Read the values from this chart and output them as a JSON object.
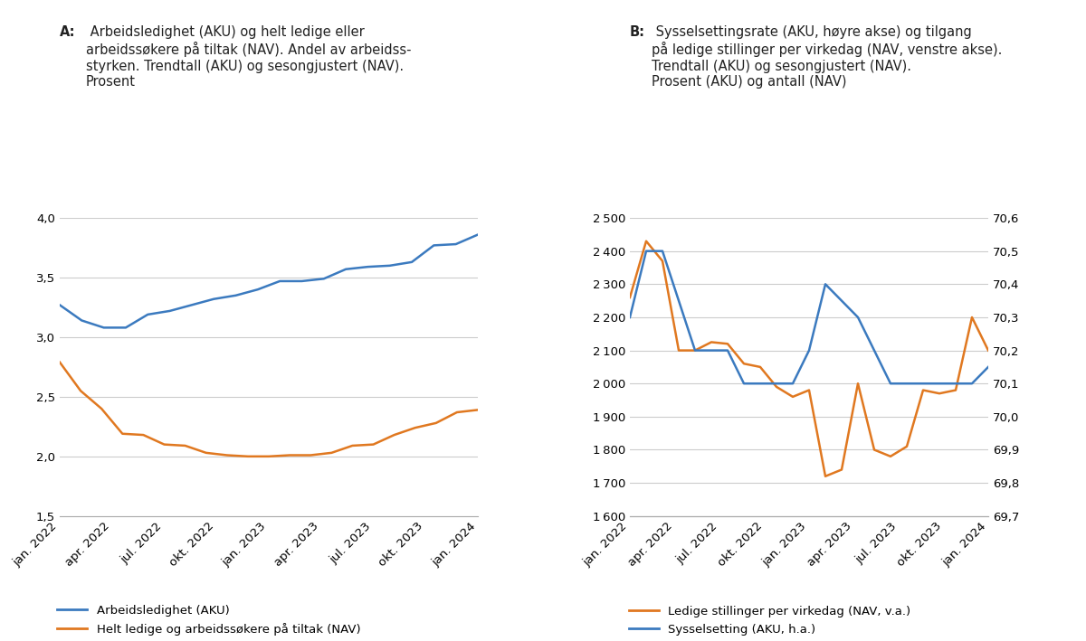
{
  "panel_a": {
    "title_bold": "A:",
    "title_text": " Arbeidsledighet (AKU) og helt ledige eller\narbeidssøkere på tiltak (NAV). Andel av arbeidss-\nstyrken. Trendtall (AKU) og sesongjustert (NAV).\nProsent",
    "x_labels": [
      "jan. 2022",
      "apr. 2022",
      "jul. 2022",
      "okt. 2022",
      "jan. 2023",
      "apr. 2023",
      "jul. 2023",
      "okt. 2023",
      "jan. 2024"
    ],
    "aku_values": [
      3.27,
      3.14,
      3.08,
      3.08,
      3.19,
      3.22,
      3.27,
      3.32,
      3.35,
      3.4,
      3.47,
      3.47,
      3.49,
      3.57,
      3.59,
      3.6,
      3.63,
      3.77,
      3.78,
      3.86
    ],
    "nav_values": [
      2.79,
      2.55,
      2.4,
      2.19,
      2.18,
      2.1,
      2.09,
      2.03,
      2.01,
      2.0,
      2.0,
      2.01,
      2.01,
      2.03,
      2.09,
      2.1,
      2.18,
      2.24,
      2.28,
      2.37,
      2.39
    ],
    "ylim": [
      1.5,
      4.0
    ],
    "yticks": [
      1.5,
      2.0,
      2.5,
      3.0,
      3.5,
      4.0
    ],
    "legend_aku": "Arbeidsledighet (AKU)",
    "legend_nav": "Helt ledige og arbeidssøkere på tiltak (NAV)",
    "color_aku": "#3b7abf",
    "color_nav": "#e07820"
  },
  "panel_b": {
    "title_bold": "B:",
    "title_text": " Sysselsettingsrate (AKU, høyre akse) og tilgang\npå ledige stillinger per virkedag (NAV, venstre akse).\nTrendtall (AKU) og sesongjustert (NAV).\nProsent (AKU) og antall (NAV)",
    "x_labels": [
      "jan. 2022",
      "apr. 2022",
      "jul. 2022",
      "okt. 2022",
      "jan. 2023",
      "apr. 2023",
      "jul. 2023",
      "okt. 2023",
      "jan. 2024"
    ],
    "nav_left_values": [
      2260,
      2430,
      2370,
      2100,
      2100,
      2125,
      2120,
      2060,
      2050,
      1990,
      1960,
      1980,
      1720,
      1740,
      2000,
      1800,
      1780,
      1810,
      1980,
      1970,
      1980,
      2200,
      2100
    ],
    "aku_right_values": [
      70.3,
      70.5,
      70.5,
      70.35,
      70.2,
      70.2,
      70.2,
      70.1,
      70.1,
      70.1,
      70.1,
      70.2,
      70.4,
      70.35,
      70.3,
      70.2,
      70.1,
      70.1,
      70.1,
      70.1,
      70.1,
      70.1,
      70.15
    ],
    "left_ylim": [
      1600,
      2500
    ],
    "left_yticks": [
      1600,
      1700,
      1800,
      1900,
      2000,
      2100,
      2200,
      2300,
      2400,
      2500
    ],
    "right_ylim": [
      69.7,
      70.6
    ],
    "right_yticks": [
      69.7,
      69.8,
      69.9,
      70.0,
      70.1,
      70.2,
      70.3,
      70.4,
      70.5,
      70.6
    ],
    "legend_nav": "Ledige stillinger per virkedag (NAV, v.a.)",
    "legend_aku": "Sysselsetting (AKU, h.a.)",
    "color_nav": "#e07820",
    "color_aku": "#3b7abf"
  },
  "background_color": "#ffffff",
  "grid_color": "#cccccc",
  "font_color": "#222222",
  "title_fontsize": 10.5,
  "tick_fontsize": 9.5,
  "legend_fontsize": 9.5
}
